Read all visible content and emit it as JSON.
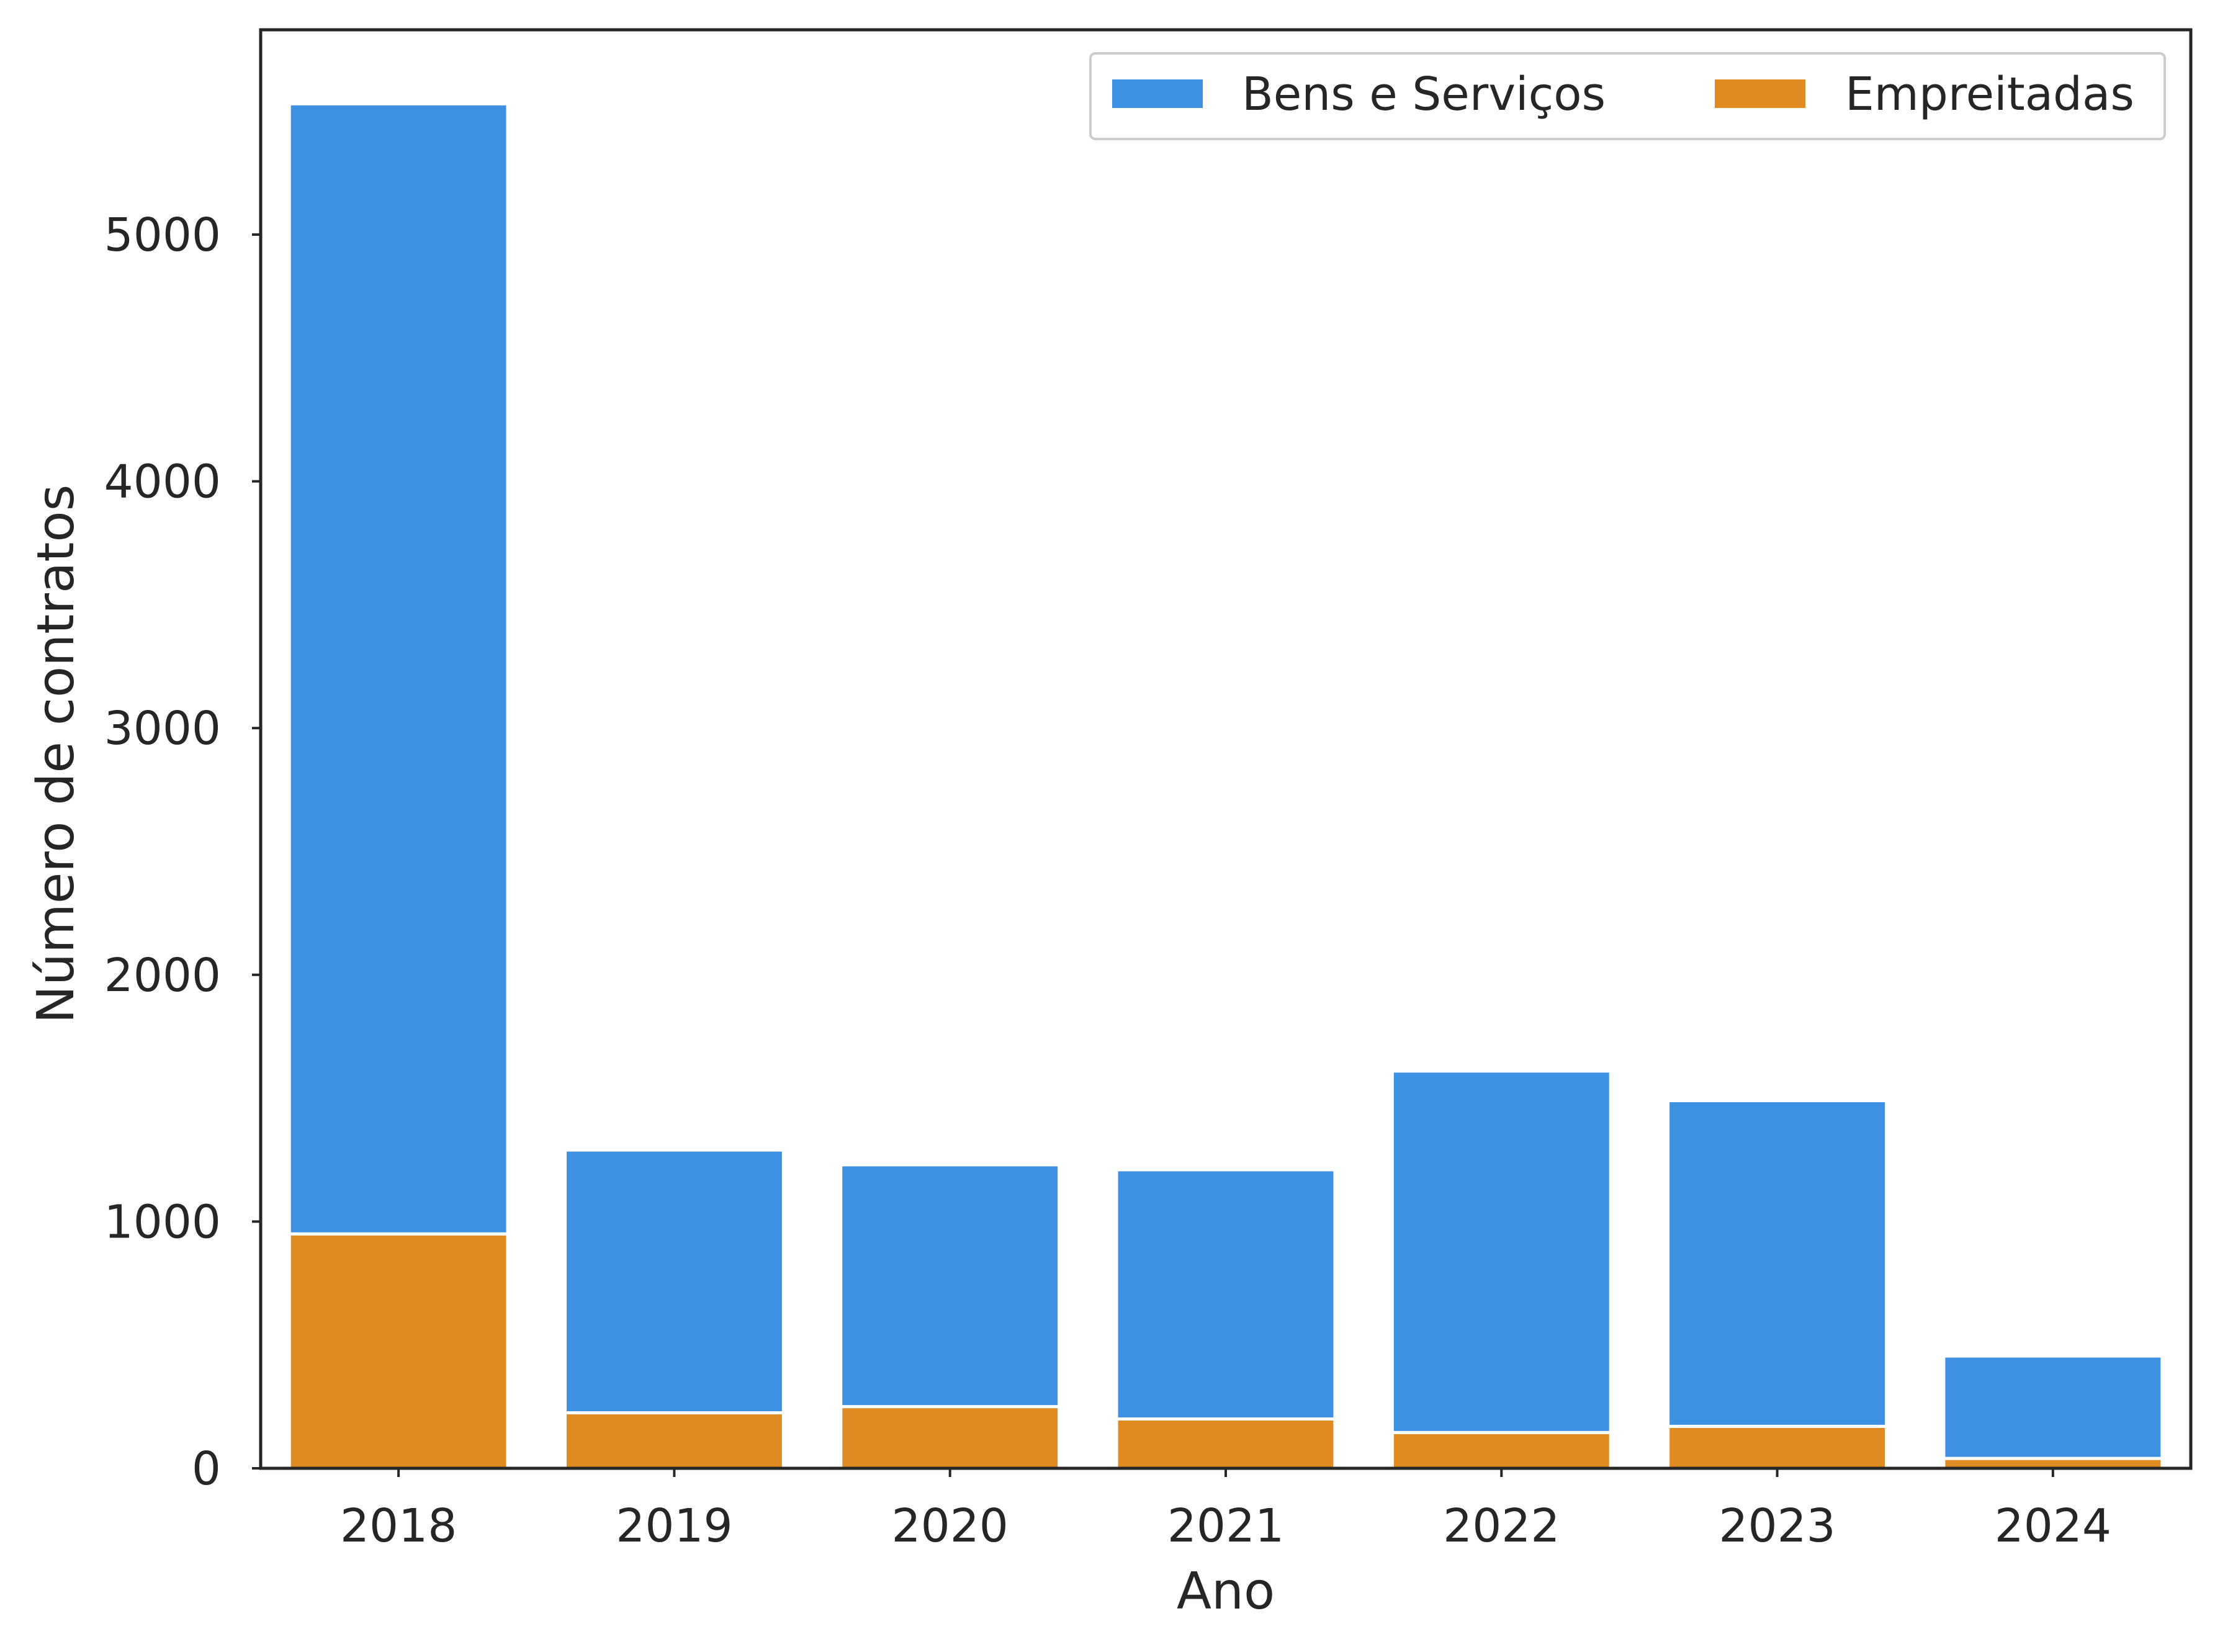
{
  "chart_data": {
    "type": "bar",
    "stacked": true,
    "categories": [
      "2018",
      "2019",
      "2020",
      "2021",
      "2022",
      "2023",
      "2024"
    ],
    "series": [
      {
        "name": "Empreitadas",
        "color": "#e08a22",
        "values": [
          950,
          225,
          250,
          200,
          145,
          170,
          40
        ]
      },
      {
        "name": "Bens e Serviços",
        "color": "#3d90e2",
        "values": [
          4580,
          1065,
          980,
          1010,
          1465,
          1320,
          415
        ]
      }
    ],
    "legend_order": [
      "Bens e Serviços",
      "Empreitadas"
    ],
    "legend_position": "top-right",
    "xlabel": "Ano",
    "ylabel": "Número de contratos",
    "ylim": [
      0,
      5830
    ],
    "yticks": [
      0,
      1000,
      2000,
      3000,
      4000,
      5000
    ],
    "grid": false
  }
}
